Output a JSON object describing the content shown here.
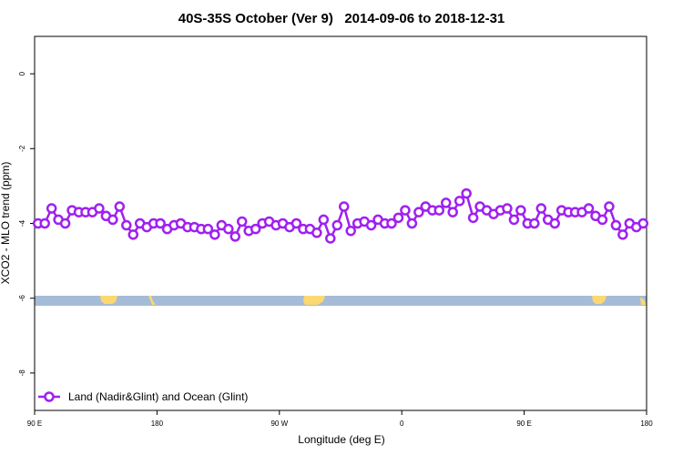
{
  "chart_data": {
    "type": "line",
    "title": "40S-35S October (Ver 9)   2014-09-06 to 2018-12-31",
    "x_label": "Longitude (deg E)",
    "y_label": "XCO2 - MLO trend (ppm)",
    "x": [
      92.5,
      97.5,
      102.5,
      107.5,
      112.5,
      117.5,
      122.5,
      127.5,
      132.5,
      137.5,
      142.5,
      147.5,
      152.5,
      157.5,
      162.5,
      167.5,
      172.5,
      177.5,
      182.5,
      187.5,
      192.5,
      197.5,
      202.5,
      207.5,
      212.5,
      217.5,
      222.5,
      227.5,
      232.5,
      237.5,
      242.5,
      247.5,
      252.5,
      257.5,
      262.5,
      267.5,
      272.5,
      277.5,
      282.5,
      287.5,
      292.5,
      297.5,
      302.5,
      307.5,
      312.5,
      317.5,
      322.5,
      327.5,
      332.5,
      337.5,
      342.5,
      347.5,
      352.5,
      357.5,
      362.5,
      367.5,
      372.5,
      377.5,
      382.5,
      387.5,
      392.5,
      397.5,
      402.5,
      407.5,
      412.5,
      417.5,
      422.5,
      427.5,
      432.5,
      437.5,
      442.5,
      447.5,
      452.5,
      457.5,
      462.5,
      467.5,
      472.5,
      477.5,
      482.5,
      487.5,
      492.5,
      497.5,
      502.5,
      507.5,
      512.5,
      517.5,
      522.5,
      527.5,
      532.5,
      537.5
    ],
    "series": [
      {
        "name": "Land (Nadir&Glint) and Ocean (Glint)",
        "color": "#a020f0",
        "values": [
          -4.0,
          -4.0,
          -3.6,
          -3.9,
          -4.0,
          -3.65,
          -3.7,
          -3.7,
          -3.7,
          -3.6,
          -3.8,
          -3.9,
          -3.55,
          -4.05,
          -4.3,
          -4.0,
          -4.1,
          -4.0,
          -4.0,
          -4.15,
          -4.05,
          -4.0,
          -4.1,
          -4.1,
          -4.15,
          -4.15,
          -4.3,
          -4.05,
          -4.15,
          -4.35,
          -3.95,
          -4.2,
          -4.15,
          -4.0,
          -3.95,
          -4.05,
          -4.0,
          -4.1,
          -4.0,
          -4.15,
          -4.15,
          -4.25,
          -3.9,
          -4.4,
          -4.05,
          -3.55,
          -4.2,
          -4.0,
          -3.95,
          -4.05,
          -3.9,
          -4.0,
          -4.0,
          -3.85,
          -3.65,
          -4.0,
          -3.7,
          -3.55,
          -3.65,
          -3.65,
          -3.45,
          -3.7,
          -3.4,
          -3.2,
          -3.85,
          -3.55,
          -3.65,
          -3.75,
          -3.65,
          -3.6,
          -3.9,
          -3.65,
          -4.0,
          -4.0,
          -3.6,
          -3.9,
          -4.0,
          -3.65,
          -3.7,
          -3.7,
          -3.7,
          -3.6,
          -3.8,
          -3.9,
          -3.55,
          -4.05,
          -4.3,
          -4.0,
          -4.1,
          -4.0
        ]
      }
    ],
    "xlim": [
      90,
      540
    ],
    "xticks": [
      {
        "value": 90,
        "label": "90 E"
      },
      180,
      {
        "value": 270,
        "label": "90 W"
      },
      {
        "value": 360,
        "label": "0"
      },
      {
        "value": 450,
        "label": "90 E"
      },
      {
        "value": 540,
        "label": "180"
      }
    ],
    "ylim": [
      -9,
      1
    ],
    "yticks": [
      0,
      -2,
      -4,
      -6,
      -8
    ],
    "legend": "bottom-left"
  }
}
